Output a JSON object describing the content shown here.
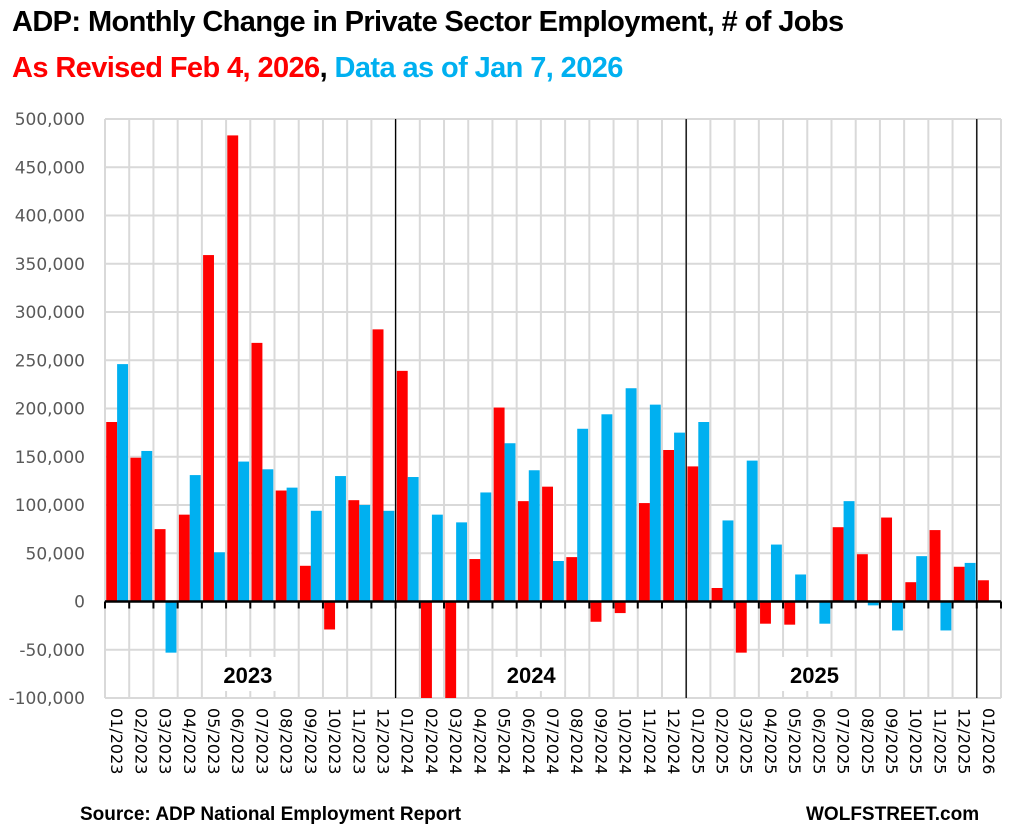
{
  "chart_data": {
    "type": "bar",
    "title": "ADP: Monthly Change in Private Sector Employment, # of Jobs",
    "subtitle_red": "As Revised Feb 4, 2026",
    "subtitle_separator": ",",
    "subtitle_blue": "Data as of Jan 7, 2026",
    "xlabel": "",
    "ylabel": "",
    "ylim": [
      -100000,
      500000
    ],
    "yticks": [
      500000,
      450000,
      400000,
      350000,
      300000,
      250000,
      200000,
      150000,
      100000,
      50000,
      0,
      -50000,
      -100000
    ],
    "ytick_labels": [
      "500,000",
      "450,000",
      "400,000",
      "350,000",
      "300,000",
      "250,000",
      "200,000",
      "150,000",
      "100,000",
      "50,000",
      "0",
      "-50,000",
      "-100,000"
    ],
    "grid": true,
    "categories": [
      "01/2023",
      "02/2023",
      "03/2023",
      "04/2023",
      "05/2023",
      "06/2023",
      "07/2023",
      "08/2023",
      "09/2023",
      "10/2023",
      "11/2023",
      "12/2023",
      "01/2024",
      "02/2024",
      "03/2024",
      "04/2024",
      "05/2024",
      "06/2024",
      "07/2024",
      "08/2024",
      "09/2024",
      "10/2024",
      "11/2024",
      "12/2024",
      "01/2025",
      "02/2025",
      "03/2025",
      "04/2025",
      "05/2025",
      "06/2025",
      "07/2025",
      "08/2025",
      "09/2025",
      "10/2025",
      "11/2025",
      "12/2025",
      "01/2026"
    ],
    "series": [
      {
        "name": "As Revised Feb 4, 2026",
        "color": "#ff0000",
        "values": [
          186000,
          149000,
          75000,
          90000,
          359000,
          483000,
          268000,
          115000,
          37000,
          -29000,
          105000,
          282000,
          239000,
          -100000,
          -100000,
          44000,
          201000,
          104000,
          119000,
          46000,
          -21000,
          -12000,
          102000,
          157000,
          140000,
          14000,
          -53000,
          -23000,
          -24000,
          null,
          77000,
          49000,
          87000,
          20000,
          74000,
          36000,
          22000
        ]
      },
      {
        "name": "Data as of Jan 7, 2026",
        "color": "#00b0f0",
        "values": [
          246000,
          156000,
          -53000,
          131000,
          51000,
          145000,
          137000,
          118000,
          94000,
          130000,
          100000,
          94000,
          129000,
          90000,
          82000,
          113000,
          164000,
          136000,
          42000,
          179000,
          194000,
          221000,
          204000,
          175000,
          186000,
          84000,
          146000,
          59000,
          28000,
          -23000,
          104000,
          -4000,
          -30000,
          47000,
          -30000,
          40000,
          null
        ]
      }
    ],
    "year_separators_after": [
      "12/2023",
      "12/2024",
      "12/2025"
    ],
    "annotations": [
      "2023",
      "2024",
      "2025"
    ],
    "legend": "none"
  },
  "footer": {
    "source": "Source: ADP National Employment Report",
    "brand": "WOLFSTREET.com"
  }
}
